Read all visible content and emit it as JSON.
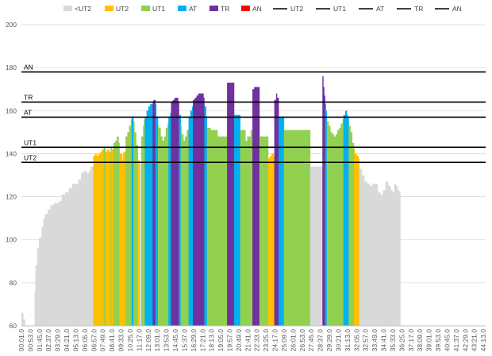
{
  "chart_data": {
    "type": "area",
    "title": "",
    "xlabel": "",
    "ylabel": "",
    "ylim": [
      60,
      200
    ],
    "yticks": [
      60,
      80,
      100,
      120,
      140,
      160,
      180,
      200
    ],
    "x_range_seconds": [
      0,
      2653
    ],
    "x_tick_labels": [
      "00:01.0",
      "00:53.0",
      "01:45.0",
      "02:37.0",
      "03:29.0",
      "04:21.0",
      "05:13.0",
      "06:05.0",
      "06:57.0",
      "07:49.0",
      "08:41.0",
      "09:33.0",
      "10:25.0",
      "11:17.0",
      "12:09.0",
      "13:01.0",
      "13:53.0",
      "14:45.0",
      "15:37.0",
      "16:29.0",
      "17:21.0",
      "18:13.0",
      "19:05.0",
      "19:57.0",
      "20:49.0",
      "21:41.0",
      "22:33.0",
      "23:25.0",
      "24:17.0",
      "25:09.0",
      "26:01.0",
      "26:53.0",
      "27:45.0",
      "28:37.0",
      "29:29.0",
      "30:21.0",
      "31:13.0",
      "32:05.0",
      "32:57.0",
      "33:49.0",
      "34:41.0",
      "35:33.0",
      "36:25.0",
      "37:17.0",
      "38:09.0",
      "39:01.0",
      "39:53.0",
      "40:45.0",
      "41:37.0",
      "42:29.0",
      "43:21.0",
      "44:13.0"
    ],
    "zones": [
      {
        "name": "<UT2",
        "color": "#d9d9d9"
      },
      {
        "name": "UT2",
        "color": "#ffc000"
      },
      {
        "name": "UT1",
        "color": "#92d050"
      },
      {
        "name": "AT",
        "color": "#00b0f0"
      },
      {
        "name": "TR",
        "color": "#7030a0"
      },
      {
        "name": "AN",
        "color": "#ff0000"
      }
    ],
    "thresholds": [
      {
        "name": "UT2",
        "value": 136
      },
      {
        "name": "UT1",
        "value": 143
      },
      {
        "name": "AT",
        "value": 157
      },
      {
        "name": "TR",
        "value": 164
      },
      {
        "name": "AN",
        "value": 178
      }
    ],
    "threshold_legend": [
      "UT2",
      "UT1",
      "AT",
      "TR",
      "AN"
    ],
    "heart_rate_profile": [
      [
        0,
        66
      ],
      [
        10,
        63
      ],
      [
        20,
        60
      ],
      [
        30,
        60
      ],
      [
        40,
        60
      ],
      [
        50,
        60
      ],
      [
        60,
        60
      ],
      [
        70,
        60
      ],
      [
        75,
        76
      ],
      [
        80,
        88
      ],
      [
        90,
        96
      ],
      [
        100,
        101
      ],
      [
        115,
        106
      ],
      [
        125,
        110
      ],
      [
        135,
        112
      ],
      [
        150,
        114
      ],
      [
        165,
        116
      ],
      [
        185,
        117
      ],
      [
        200,
        117
      ],
      [
        215,
        118
      ],
      [
        230,
        121
      ],
      [
        250,
        122
      ],
      [
        270,
        124
      ],
      [
        290,
        126
      ],
      [
        310,
        126
      ],
      [
        325,
        128
      ],
      [
        340,
        131
      ],
      [
        355,
        132
      ],
      [
        370,
        131
      ],
      [
        385,
        132
      ],
      [
        395,
        134
      ],
      [
        400,
        134
      ],
      [
        410,
        139
      ],
      [
        420,
        140
      ],
      [
        430,
        139
      ],
      [
        440,
        140
      ],
      [
        450,
        141
      ],
      [
        460,
        142
      ],
      [
        470,
        143
      ],
      [
        480,
        141
      ],
      [
        490,
        142
      ],
      [
        500,
        141
      ],
      [
        510,
        143
      ],
      [
        515,
        142
      ],
      [
        525,
        145
      ],
      [
        535,
        146
      ],
      [
        545,
        148
      ],
      [
        555,
        145
      ],
      [
        560,
        140
      ],
      [
        575,
        137
      ],
      [
        580,
        140
      ],
      [
        585,
        141
      ],
      [
        595,
        148
      ],
      [
        605,
        150
      ],
      [
        615,
        153
      ],
      [
        625,
        156
      ],
      [
        630,
        157
      ],
      [
        640,
        155
      ],
      [
        645,
        150
      ],
      [
        655,
        144
      ],
      [
        662,
        140
      ],
      [
        665,
        137
      ],
      [
        675,
        135
      ],
      [
        682,
        140
      ],
      [
        685,
        148
      ],
      [
        695,
        153
      ],
      [
        700,
        156
      ],
      [
        705,
        157
      ],
      [
        715,
        160
      ],
      [
        725,
        162
      ],
      [
        735,
        163
      ],
      [
        745,
        163
      ],
      [
        750,
        164
      ],
      [
        755,
        165
      ],
      [
        760,
        165
      ],
      [
        765,
        163
      ],
      [
        770,
        157
      ],
      [
        780,
        153
      ],
      [
        785,
        152
      ],
      [
        795,
        148
      ],
      [
        805,
        146
      ],
      [
        815,
        148
      ],
      [
        825,
        152
      ],
      [
        835,
        154
      ],
      [
        840,
        157
      ],
      [
        850,
        159
      ],
      [
        855,
        164
      ],
      [
        865,
        165
      ],
      [
        875,
        166
      ],
      [
        885,
        166
      ],
      [
        892,
        164
      ],
      [
        900,
        158
      ],
      [
        908,
        153
      ],
      [
        915,
        149
      ],
      [
        925,
        146
      ],
      [
        935,
        148
      ],
      [
        945,
        151
      ],
      [
        952,
        155
      ],
      [
        955,
        157
      ],
      [
        965,
        160
      ],
      [
        972,
        162
      ],
      [
        978,
        165
      ],
      [
        990,
        166
      ],
      [
        1000,
        167
      ],
      [
        1010,
        168
      ],
      [
        1020,
        168
      ],
      [
        1030,
        168
      ],
      [
        1040,
        166
      ],
      [
        1045,
        162
      ],
      [
        1052,
        157
      ],
      [
        1060,
        152
      ],
      [
        1080,
        151
      ],
      [
        1100,
        151
      ],
      [
        1120,
        148
      ],
      [
        1140,
        148
      ],
      [
        1160,
        148
      ],
      [
        1172,
        173
      ],
      [
        1185,
        173
      ],
      [
        1200,
        173
      ],
      [
        1212,
        173
      ],
      [
        1215,
        158
      ],
      [
        1225,
        158
      ],
      [
        1240,
        158
      ],
      [
        1250,
        151
      ],
      [
        1260,
        151
      ],
      [
        1270,
        151
      ],
      [
        1280,
        146
      ],
      [
        1290,
        148
      ],
      [
        1300,
        148
      ],
      [
        1310,
        151
      ],
      [
        1320,
        170
      ],
      [
        1330,
        171
      ],
      [
        1340,
        171
      ],
      [
        1350,
        171
      ],
      [
        1360,
        148
      ],
      [
        1370,
        148
      ],
      [
        1390,
        148
      ],
      [
        1400,
        148
      ],
      [
        1408,
        148
      ],
      [
        1410,
        138
      ],
      [
        1420,
        139
      ],
      [
        1430,
        140
      ],
      [
        1440,
        139
      ],
      [
        1445,
        165
      ],
      [
        1452,
        168
      ],
      [
        1458,
        166
      ],
      [
        1465,
        166
      ],
      [
        1470,
        157
      ],
      [
        1480,
        157
      ],
      [
        1495,
        157
      ],
      [
        1500,
        151
      ],
      [
        1520,
        151
      ],
      [
        1540,
        151
      ],
      [
        1560,
        151
      ],
      [
        1580,
        151
      ],
      [
        1600,
        151
      ],
      [
        1620,
        151
      ],
      [
        1640,
        151
      ],
      [
        1650,
        134
      ],
      [
        1670,
        134
      ],
      [
        1690,
        134
      ],
      [
        1700,
        134
      ],
      [
        1710,
        134
      ],
      [
        1718,
        176
      ],
      [
        1722,
        171
      ],
      [
        1727,
        167
      ],
      [
        1733,
        163
      ],
      [
        1740,
        160
      ],
      [
        1745,
        155
      ],
      [
        1755,
        153
      ],
      [
        1765,
        150
      ],
      [
        1775,
        149
      ],
      [
        1785,
        148
      ],
      [
        1795,
        149
      ],
      [
        1805,
        151
      ],
      [
        1815,
        152
      ],
      [
        1825,
        154
      ],
      [
        1835,
        156
      ],
      [
        1840,
        158
      ],
      [
        1850,
        160
      ],
      [
        1858,
        158
      ],
      [
        1865,
        157
      ],
      [
        1870,
        153
      ],
      [
        1880,
        150
      ],
      [
        1890,
        145
      ],
      [
        1900,
        142
      ],
      [
        1905,
        140
      ],
      [
        1915,
        139
      ],
      [
        1925,
        138
      ],
      [
        1930,
        133
      ],
      [
        1945,
        130
      ],
      [
        1960,
        127
      ],
      [
        1975,
        126
      ],
      [
        1990,
        125
      ],
      [
        2005,
        126
      ],
      [
        2020,
        126
      ],
      [
        2035,
        122
      ],
      [
        2050,
        121
      ],
      [
        2065,
        123
      ],
      [
        2080,
        127
      ],
      [
        2095,
        125
      ],
      [
        2110,
        123
      ],
      [
        2120,
        122
      ],
      [
        2130,
        126
      ],
      [
        2140,
        125
      ],
      [
        2150,
        123
      ],
      [
        2160,
        122
      ]
    ]
  }
}
